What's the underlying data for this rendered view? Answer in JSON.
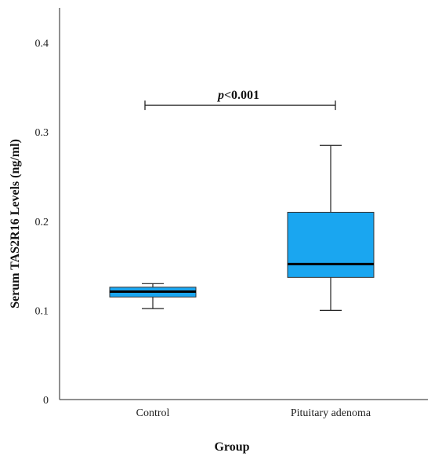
{
  "chart_data": {
    "type": "boxplot",
    "xlabel": "Group",
    "ylabel": "Serum TAS2R16 Levels (ng/ml)",
    "ylim": [
      0,
      0.43
    ],
    "yticks": [
      "0",
      "0.1",
      "0.2",
      "0.3",
      "0.4"
    ],
    "ytick_values": [
      0,
      0.1,
      0.2,
      0.3,
      0.4
    ],
    "categories": [
      "Control",
      "Pituitary adenoma"
    ],
    "boxes": [
      {
        "category": "Control",
        "whisker_low": 0.102,
        "q1": 0.115,
        "median": 0.121,
        "q3": 0.126,
        "whisker_high": 0.13
      },
      {
        "category": "Pituitary adenoma",
        "whisker_low": 0.1,
        "q1": 0.137,
        "median": 0.152,
        "q3": 0.21,
        "whisker_high": 0.285
      }
    ],
    "box_color": "#1aa6f0",
    "annotation": {
      "prefix": "p",
      "text": "<0.001",
      "y": 0.33
    }
  }
}
